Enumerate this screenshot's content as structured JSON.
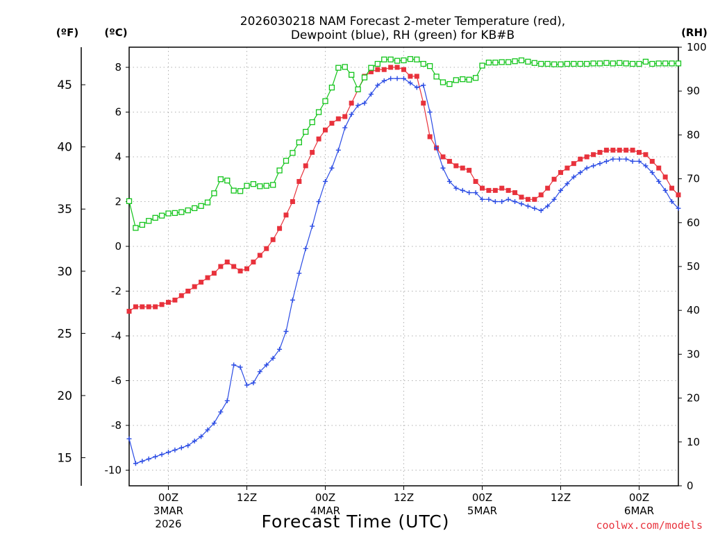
{
  "chart_data": {
    "type": "line",
    "title_line1": "2026030218 NAM Forecast 2-meter Temperature (red),",
    "title_line2": "Dewpoint (blue), RH (green) for KB#B",
    "xlabel": "Forecast Time (UTC)",
    "credit": "coolwx.com/models",
    "unit_labels": {
      "fahrenheit": "(ºF)",
      "celsius": "(ºC)",
      "rh": "(RH)"
    },
    "x_range_hours": [
      0,
      84
    ],
    "x_ticks": [
      {
        "hour": 6,
        "time": "00Z",
        "day": "3MAR",
        "year": "2026"
      },
      {
        "hour": 18,
        "time": "12Z",
        "day": "",
        "year": ""
      },
      {
        "hour": 30,
        "time": "00Z",
        "day": "4MAR",
        "year": ""
      },
      {
        "hour": 42,
        "time": "12Z",
        "day": "",
        "year": ""
      },
      {
        "hour": 54,
        "time": "00Z",
        "day": "5MAR",
        "year": ""
      },
      {
        "hour": 66,
        "time": "12Z",
        "day": "",
        "year": ""
      },
      {
        "hour": 78,
        "time": "00Z",
        "day": "6MAR",
        "year": ""
      }
    ],
    "celsius_axis": {
      "range": [
        -10.7,
        8.9
      ],
      "ticks": [
        -10,
        -8,
        -6,
        -4,
        -2,
        0,
        2,
        4,
        6,
        8
      ]
    },
    "fahrenheit_axis": {
      "ticks": [
        15,
        20,
        25,
        30,
        35,
        40,
        45
      ]
    },
    "rh_axis": {
      "range": [
        0,
        100
      ],
      "ticks": [
        0,
        10,
        20,
        30,
        40,
        50,
        60,
        70,
        80,
        90,
        100
      ]
    },
    "series": [
      {
        "name": "Temperature",
        "unit": "C",
        "color": "#e8323c",
        "marker": "filled-square",
        "x": [
          0,
          1,
          2,
          3,
          4,
          5,
          6,
          7,
          8,
          9,
          10,
          11,
          12,
          13,
          14,
          15,
          16,
          17,
          18,
          19,
          20,
          21,
          22,
          23,
          24,
          25,
          26,
          27,
          28,
          29,
          30,
          31,
          32,
          33,
          34,
          35,
          36,
          37,
          38,
          39,
          40,
          41,
          42,
          43,
          44,
          45,
          46,
          47,
          48,
          49,
          50,
          51,
          52,
          53,
          54,
          55,
          56,
          57,
          58,
          59,
          60,
          61,
          62,
          63,
          64,
          65,
          66,
          67,
          68,
          69,
          70,
          71,
          72,
          73,
          74,
          75,
          76,
          77,
          78,
          79,
          80,
          81,
          82,
          83,
          84
        ],
        "values": [
          -2.9,
          -2.7,
          -2.7,
          -2.7,
          -2.7,
          -2.6,
          -2.5,
          -2.4,
          -2.2,
          -2.0,
          -1.8,
          -1.6,
          -1.4,
          -1.2,
          -0.9,
          -0.7,
          -0.9,
          -1.1,
          -1.0,
          -0.7,
          -0.4,
          -0.1,
          0.3,
          0.8,
          1.4,
          2.0,
          2.9,
          3.6,
          4.2,
          4.8,
          5.2,
          5.5,
          5.7,
          5.8,
          6.4,
          7.0,
          7.6,
          7.8,
          7.9,
          7.9,
          8.0,
          8.0,
          7.9,
          7.6,
          7.6,
          6.4,
          4.9,
          4.4,
          4.0,
          3.8,
          3.6,
          3.5,
          3.4,
          2.9,
          2.6,
          2.5,
          2.5,
          2.6,
          2.5,
          2.4,
          2.2,
          2.1,
          2.1,
          2.3,
          2.6,
          3.0,
          3.3,
          3.5,
          3.7,
          3.9,
          4.0,
          4.1,
          4.2,
          4.3,
          4.3,
          4.3,
          4.3,
          4.3,
          4.2,
          4.1,
          3.8,
          3.5,
          3.1,
          2.6,
          2.3
        ]
      },
      {
        "name": "Dewpoint",
        "unit": "C",
        "color": "#2a4be4",
        "marker": "plus",
        "x": [
          0,
          1,
          2,
          3,
          4,
          5,
          6,
          7,
          8,
          9,
          10,
          11,
          12,
          13,
          14,
          15,
          16,
          17,
          18,
          19,
          20,
          21,
          22,
          23,
          24,
          25,
          26,
          27,
          28,
          29,
          30,
          31,
          32,
          33,
          34,
          35,
          36,
          37,
          38,
          39,
          40,
          41,
          42,
          43,
          44,
          45,
          46,
          47,
          48,
          49,
          50,
          51,
          52,
          53,
          54,
          55,
          56,
          57,
          58,
          59,
          60,
          61,
          62,
          63,
          64,
          65,
          66,
          67,
          68,
          69,
          70,
          71,
          72,
          73,
          74,
          75,
          76,
          77,
          78,
          79,
          80,
          81,
          82,
          83,
          84
        ],
        "values": [
          -8.6,
          -9.7,
          -9.6,
          -9.5,
          -9.4,
          -9.3,
          -9.2,
          -9.1,
          -9.0,
          -8.9,
          -8.7,
          -8.5,
          -8.2,
          -7.9,
          -7.4,
          -6.9,
          -5.3,
          -5.4,
          -6.2,
          -6.1,
          -5.6,
          -5.3,
          -5.0,
          -4.6,
          -3.8,
          -2.4,
          -1.2,
          -0.1,
          0.9,
          2.0,
          2.9,
          3.5,
          4.3,
          5.3,
          5.9,
          6.3,
          6.4,
          6.8,
          7.2,
          7.4,
          7.5,
          7.5,
          7.5,
          7.3,
          7.1,
          7.2,
          6.0,
          4.4,
          3.5,
          2.9,
          2.6,
          2.5,
          2.4,
          2.4,
          2.1,
          2.1,
          2.0,
          2.0,
          2.1,
          2.0,
          1.9,
          1.8,
          1.7,
          1.6,
          1.8,
          2.1,
          2.5,
          2.8,
          3.1,
          3.3,
          3.5,
          3.6,
          3.7,
          3.8,
          3.9,
          3.9,
          3.9,
          3.8,
          3.8,
          3.6,
          3.3,
          2.9,
          2.5,
          2.0,
          1.7
        ]
      },
      {
        "name": "Relative Humidity",
        "unit": "%",
        "color": "#12c41a",
        "marker": "open-square",
        "x": [
          0,
          1,
          2,
          3,
          4,
          5,
          6,
          7,
          8,
          9,
          10,
          11,
          12,
          13,
          14,
          15,
          16,
          17,
          18,
          19,
          20,
          21,
          22,
          23,
          24,
          25,
          26,
          27,
          28,
          29,
          30,
          31,
          32,
          33,
          34,
          35,
          36,
          37,
          38,
          39,
          40,
          41,
          42,
          43,
          44,
          45,
          46,
          47,
          48,
          49,
          50,
          51,
          52,
          53,
          54,
          55,
          56,
          57,
          58,
          59,
          60,
          61,
          62,
          63,
          64,
          65,
          66,
          67,
          68,
          69,
          70,
          71,
          72,
          73,
          74,
          75,
          76,
          77,
          78,
          79,
          80,
          81,
          82,
          83,
          84
        ],
        "values": [
          64.9,
          58.8,
          59.5,
          60.4,
          61.1,
          61.6,
          62.1,
          62.2,
          62.4,
          62.8,
          63.3,
          63.8,
          64.6,
          66.7,
          69.9,
          69.6,
          67.3,
          67.2,
          68.4,
          68.8,
          68.3,
          68.4,
          68.6,
          71.9,
          74.1,
          75.9,
          78.3,
          80.7,
          82.9,
          85.2,
          87.7,
          90.8,
          95.3,
          95.5,
          93.7,
          90.4,
          93.1,
          95.3,
          96.2,
          97.2,
          97.2,
          96.9,
          97.0,
          97.3,
          97.2,
          96.2,
          95.7,
          93.3,
          92.0,
          91.6,
          92.5,
          92.7,
          92.6,
          93.0,
          95.8,
          96.5,
          96.5,
          96.6,
          96.6,
          96.8,
          97.0,
          96.7,
          96.4,
          96.2,
          96.2,
          96.1,
          96.1,
          96.2,
          96.2,
          96.2,
          96.2,
          96.3,
          96.3,
          96.4,
          96.3,
          96.4,
          96.3,
          96.2,
          96.2,
          96.7,
          96.2,
          96.3,
          96.3,
          96.3,
          96.3
        ]
      }
    ]
  }
}
